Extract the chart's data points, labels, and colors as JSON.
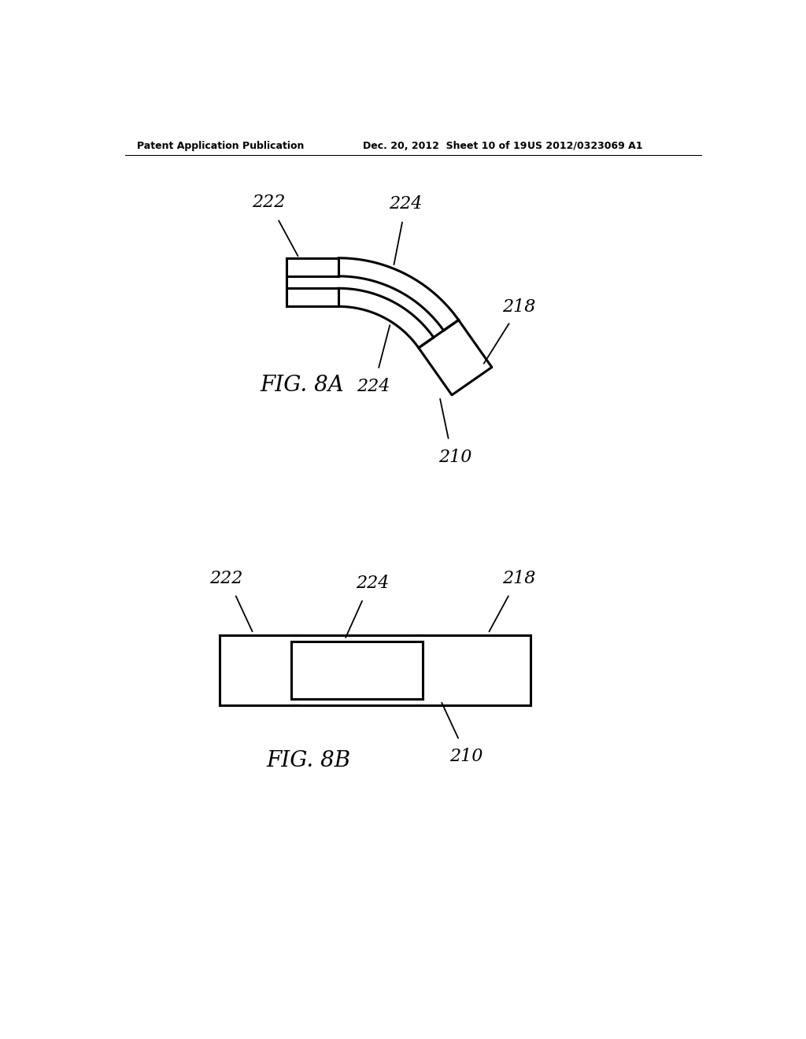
{
  "bg_color": "#ffffff",
  "line_color": "#000000",
  "line_width": 2.2,
  "header_left": "Patent Application Publication",
  "header_mid": "Dec. 20, 2012  Sheet 10 of 19",
  "header_right": "US 2012/0323069 A1",
  "fig8a_label": "FIG. 8A",
  "fig8b_label": "FIG. 8B",
  "label_222_a": "222",
  "label_224_a_top": "224",
  "label_218_a": "218",
  "label_224_a_bot": "224",
  "label_210_a": "210",
  "label_222_b": "222",
  "label_224_b": "224",
  "label_218_b": "218",
  "label_210_b": "210"
}
